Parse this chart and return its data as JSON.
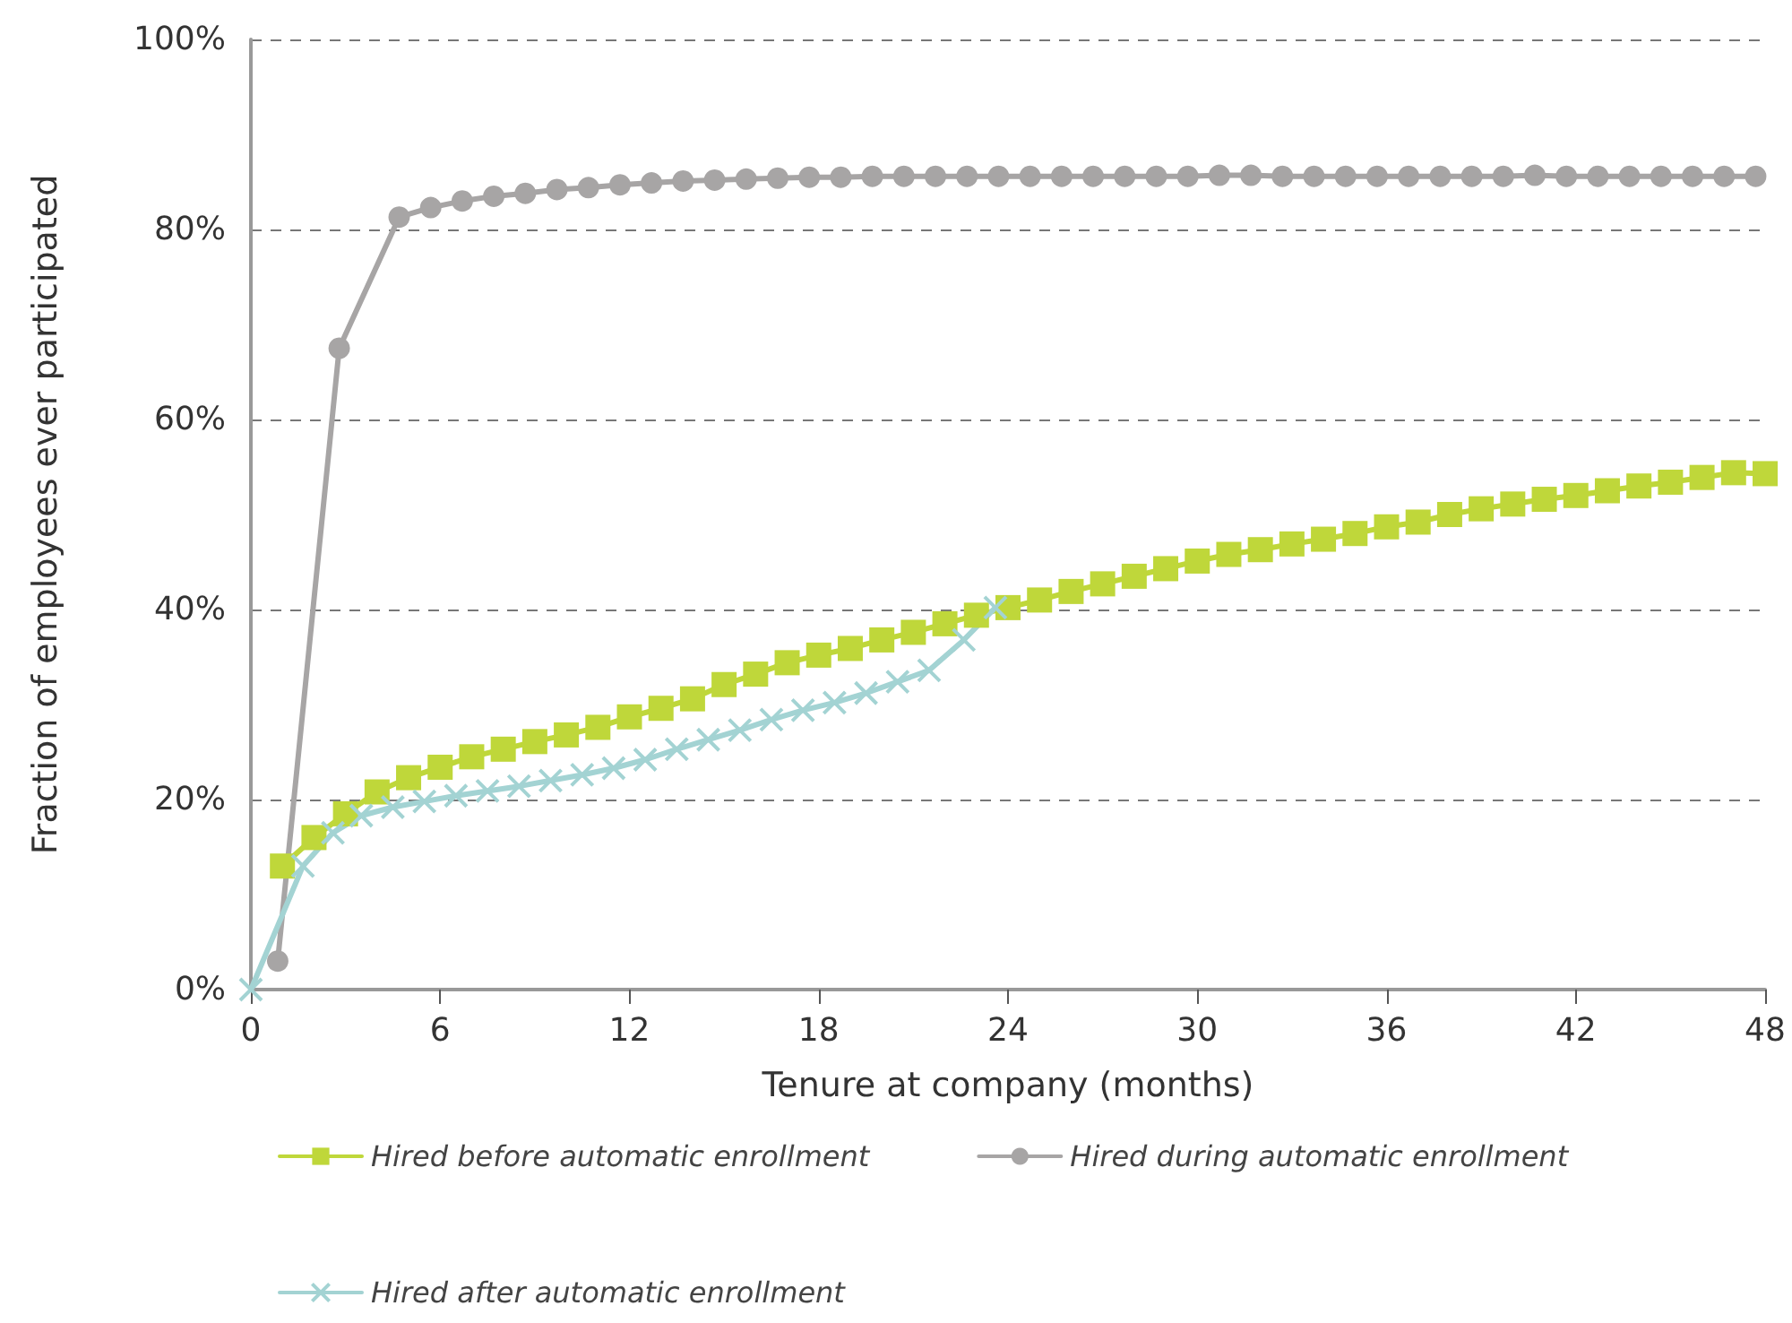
{
  "chart_data": {
    "type": "line",
    "xlabel": "Tenure at company (months)",
    "ylabel": "Fraction of employees ever participated",
    "xlim": [
      0,
      48
    ],
    "xticks": [
      0,
      6,
      12,
      18,
      24,
      30,
      36,
      42,
      48
    ],
    "ylim": [
      0,
      100
    ],
    "yticks": [
      {
        "value": 0,
        "label": "0%"
      },
      {
        "value": 20,
        "label": "20%"
      },
      {
        "value": 40,
        "label": "40%"
      },
      {
        "value": 60,
        "label": "60%"
      },
      {
        "value": 80,
        "label": "80%"
      },
      {
        "value": 100,
        "label": "100%"
      }
    ],
    "grid": "y",
    "legend": "bottom",
    "series": [
      {
        "name": "Hired before automatic enrollment",
        "color": "#bfd73a",
        "marker": "square",
        "x": [
          1,
          2,
          3,
          4,
          5,
          6,
          7,
          8,
          9,
          10,
          11,
          12,
          13,
          14,
          15,
          16,
          17,
          18,
          19,
          20,
          21,
          22,
          23,
          24,
          25,
          26,
          27,
          28,
          29,
          30,
          31,
          32,
          33,
          34,
          35,
          36,
          37,
          38,
          39,
          40,
          41,
          42,
          43,
          44,
          45,
          46,
          47,
          48
        ],
        "values": [
          13,
          16,
          18.5,
          20.8,
          22.3,
          23.4,
          24.5,
          25.3,
          26.1,
          26.8,
          27.6,
          28.7,
          29.6,
          30.6,
          32.1,
          33.2,
          34.4,
          35.2,
          35.9,
          36.8,
          37.6,
          38.5,
          39.4,
          40.2,
          41,
          41.9,
          42.7,
          43.5,
          44.3,
          45.1,
          45.8,
          46.3,
          46.9,
          47.4,
          48,
          48.7,
          49.2,
          50,
          50.6,
          51.1,
          51.6,
          52,
          52.5,
          53,
          53.4,
          53.9,
          54.4,
          54.3
        ]
      },
      {
        "name": "Hired during automatic enrollment",
        "color": "#a7a5a5",
        "marker": "circle",
        "x": [
          0.85,
          2.8,
          4.7,
          5.7,
          6.7,
          7.7,
          8.7,
          9.7,
          10.7,
          11.7,
          12.7,
          13.7,
          14.7,
          15.7,
          16.7,
          17.7,
          18.7,
          19.7,
          20.7,
          21.7,
          22.7,
          23.7,
          24.7,
          25.7,
          26.7,
          27.7,
          28.7,
          29.7,
          30.7,
          31.7,
          32.7,
          33.7,
          34.7,
          35.7,
          36.7,
          37.7,
          38.7,
          39.7,
          40.7,
          41.7,
          42.7,
          43.7,
          44.7,
          45.7,
          46.7,
          47.7
        ],
        "values": [
          3,
          67.5,
          81.3,
          82.3,
          83,
          83.5,
          83.8,
          84.2,
          84.4,
          84.7,
          84.9,
          85.1,
          85.2,
          85.3,
          85.4,
          85.5,
          85.5,
          85.6,
          85.6,
          85.6,
          85.6,
          85.6,
          85.6,
          85.6,
          85.6,
          85.6,
          85.6,
          85.6,
          85.7,
          85.7,
          85.6,
          85.6,
          85.6,
          85.6,
          85.6,
          85.6,
          85.6,
          85.6,
          85.7,
          85.6,
          85.6,
          85.6,
          85.6,
          85.6,
          85.6,
          85.6
        ]
      },
      {
        "name": "Hired after automatic enrollment",
        "color": "#a3d3d3",
        "marker": "cross",
        "x": [
          0,
          1.65,
          2.6,
          3.5,
          4.5,
          5.5,
          6.5,
          7.5,
          8.5,
          9.5,
          10.5,
          11.5,
          12.5,
          13.5,
          14.5,
          15.5,
          16.5,
          17.5,
          18.5,
          19.5,
          20.5,
          21.5,
          22.6,
          23.6
        ],
        "values": [
          0,
          13,
          16.5,
          18.3,
          19.2,
          19.8,
          20.4,
          20.9,
          21.4,
          22,
          22.6,
          23.3,
          24.2,
          25.3,
          26.3,
          27.3,
          28.4,
          29.4,
          30.2,
          31.2,
          32.4,
          33.6,
          36.8,
          40.2
        ]
      }
    ]
  }
}
